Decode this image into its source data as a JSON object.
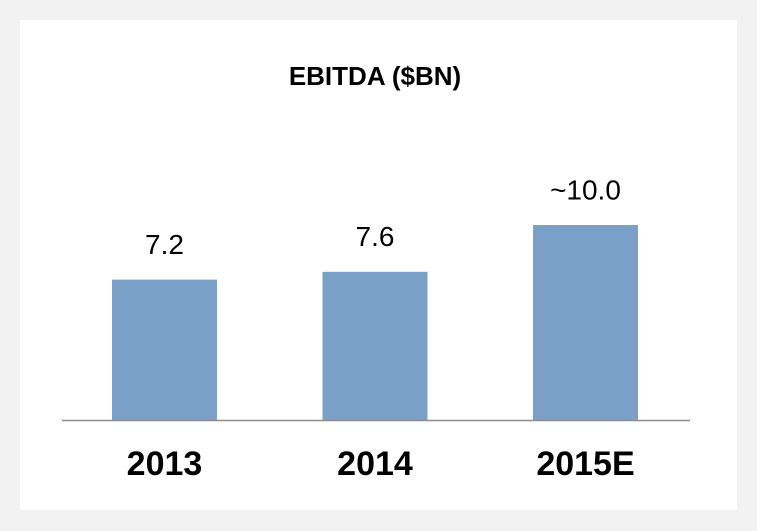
{
  "chart_data": {
    "type": "bar",
    "title": "EBITDA ($BN)",
    "categories": [
      "2013",
      "2014",
      "2015E"
    ],
    "values": [
      7.2,
      7.6,
      10.0
    ],
    "value_labels": [
      "7.2",
      "7.6",
      "~10.0"
    ],
    "color": "#7ba0c8"
  }
}
